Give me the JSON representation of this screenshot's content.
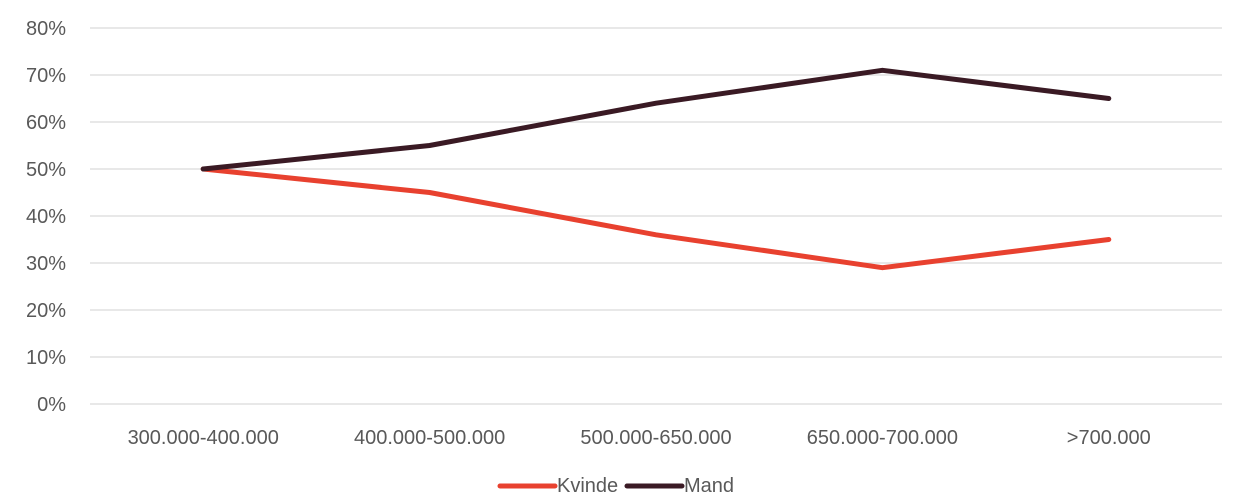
{
  "chart_data": {
    "type": "line",
    "categories": [
      "300.000-400.000",
      "400.000-500.000",
      "500.000-650.000",
      "650.000-700.000",
      ">700.000"
    ],
    "series": [
      {
        "name": "Kvinde",
        "values": [
          50,
          45,
          36,
          29,
          35
        ],
        "color": "#E8412F"
      },
      {
        "name": "Mand",
        "values": [
          50,
          55,
          64,
          71,
          65
        ],
        "color": "#3A1A24"
      }
    ],
    "ylim": [
      0,
      80
    ],
    "y_ticks": [
      "0%",
      "10%",
      "20%",
      "30%",
      "40%",
      "50%",
      "60%",
      "70%",
      "80%"
    ],
    "grid": true,
    "legend_position": "bottom"
  }
}
